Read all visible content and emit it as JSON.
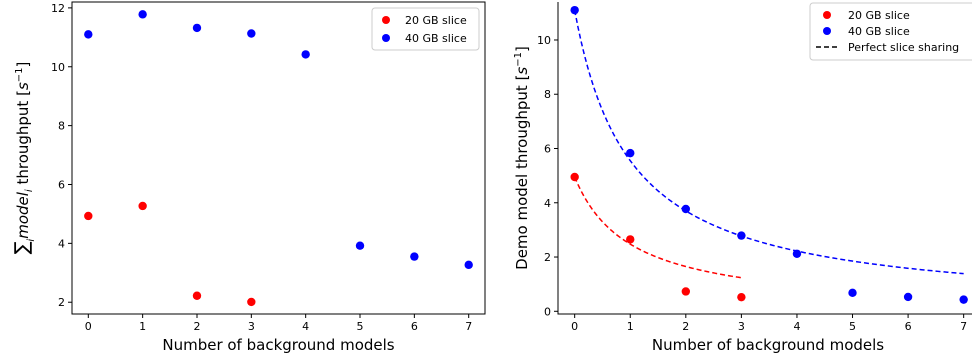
{
  "chart_data": [
    {
      "type": "scatter",
      "xlabel": "Number of background models",
      "ylabel_parts": {
        "sum": "∑",
        "sub": "i",
        "model": "model",
        "model_sub": "i",
        "rest": " throughput [",
        "unit": "s",
        "exp": "−1",
        "close": "]"
      },
      "xlim": [
        -0.3,
        7.3
      ],
      "ylim": [
        1.6,
        12.2
      ],
      "xticks": [
        0,
        1,
        2,
        3,
        4,
        5,
        6,
        7
      ],
      "yticks": [
        2,
        4,
        6,
        8,
        10,
        12
      ],
      "legend_position": "upper right",
      "series": [
        {
          "name": "20 GB slice",
          "color": "#ff0000",
          "points": [
            [
              0,
              4.93
            ],
            [
              1,
              5.27
            ],
            [
              2,
              2.22
            ],
            [
              3,
              2.01
            ]
          ]
        },
        {
          "name": "40 GB slice",
          "color": "#0000ff",
          "points": [
            [
              0,
              11.1
            ],
            [
              1,
              11.78
            ],
            [
              2,
              11.32
            ],
            [
              3,
              11.13
            ],
            [
              4,
              10.42
            ],
            [
              5,
              3.92
            ],
            [
              6,
              3.55
            ],
            [
              7,
              3.27
            ]
          ]
        }
      ]
    },
    {
      "type": "scatter",
      "xlabel": "Number of background models",
      "ylabel": "Demo model throughput [s⁻¹]",
      "ylabel_parts": {
        "text": "Demo model throughput [",
        "unit": "s",
        "exp": "−1",
        "close": "]"
      },
      "xlim": [
        -0.3,
        7.15
      ],
      "ylim": [
        -0.1,
        11.4
      ],
      "xticks": [
        0,
        1,
        2,
        3,
        4,
        5,
        6,
        7
      ],
      "yticks": [
        0,
        2,
        4,
        6,
        8,
        10
      ],
      "legend_position": "upper right",
      "series": [
        {
          "name": "20 GB slice",
          "color": "#ff0000",
          "points": [
            [
              0,
              4.95
            ],
            [
              1,
              2.65
            ],
            [
              2,
              0.73
            ],
            [
              3,
              0.52
            ]
          ]
        },
        {
          "name": "40 GB slice",
          "color": "#0000ff",
          "points": [
            [
              0,
              11.1
            ],
            [
              1,
              5.83
            ],
            [
              2,
              3.77
            ],
            [
              3,
              2.79
            ],
            [
              4,
              2.12
            ],
            [
              5,
              0.68
            ],
            [
              6,
              0.53
            ],
            [
              7,
              0.43
            ]
          ]
        },
        {
          "name": "Perfect slice sharing",
          "style": "dashed",
          "color": "#000000",
          "legend_only": true
        }
      ],
      "curves": [
        {
          "color": "#ff0000",
          "style": "dashed",
          "base": 4.95,
          "x_range": [
            0,
            3
          ]
        },
        {
          "color": "#0000ff",
          "style": "dashed",
          "base": 11.1,
          "x_range": [
            0,
            7
          ]
        }
      ]
    }
  ]
}
